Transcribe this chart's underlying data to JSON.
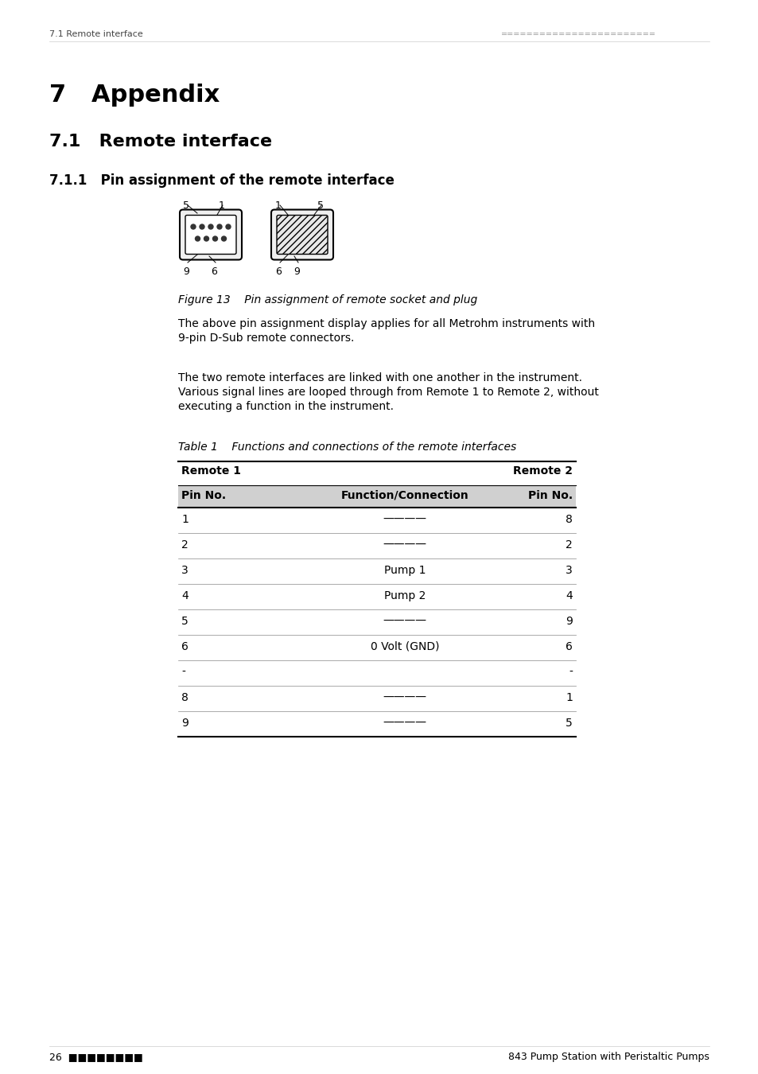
{
  "page_header_left": "7.1 Remote interface",
  "page_header_right": "========================",
  "chapter_title": "7   Appendix",
  "section_title": "7.1   Remote interface",
  "subsection_title": "7.1.1   Pin assignment of the remote interface",
  "figure_caption": "Figure 13    Pin assignment of remote socket and plug",
  "para1": "The above pin assignment display applies for all Metrohm instruments with\n9-pin D-Sub remote connectors.",
  "para2": "The two remote interfaces are linked with one another in the instrument.\nVarious signal lines are looped through from Remote 1 to Remote 2, without\nexecuting a function in the instrument.",
  "table_caption": "Table 1    Functions and connections of the remote interfaces",
  "col_headers": [
    "Remote 1",
    "Function/Connection",
    "Remote 2"
  ],
  "subheaders": [
    "Pin No.",
    "Function/Connection",
    "Pin No."
  ],
  "table_rows": [
    [
      "1",
      "————",
      "8"
    ],
    [
      "2",
      "————",
      "2"
    ],
    [
      "3",
      "Pump 1",
      "3"
    ],
    [
      "4",
      "Pump 2",
      "4"
    ],
    [
      "5",
      "————",
      "9"
    ],
    [
      "6",
      "0 Volt (GND)",
      "6"
    ],
    [
      "-",
      "",
      "-"
    ],
    [
      "8",
      "————",
      "1"
    ],
    [
      "9",
      "————",
      "5"
    ]
  ],
  "page_footer_left": "26  ■■■■■■■■",
  "page_footer_right": "843 Pump Station with Peristaltic Pumps",
  "bg_color": "#ffffff",
  "text_color": "#000000",
  "header_gray": "#888888",
  "table_header_bg": "#d0d0d0",
  "line_color": "#000000",
  "gray_line": "#aaaaaa"
}
